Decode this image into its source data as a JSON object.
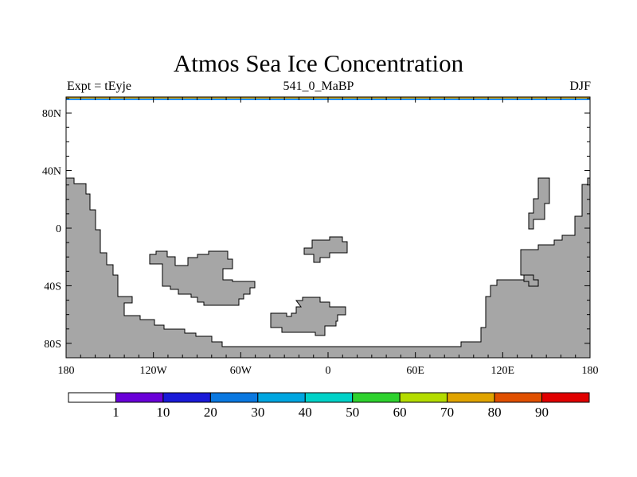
{
  "header": {
    "title": "Atmos Sea Ice Concentration",
    "left_label": "Expt = tEyje",
    "center_label": "541_0_MaBP",
    "right_label": "DJF"
  },
  "map": {
    "lon_range": [
      -180,
      180
    ],
    "lat_range": [
      -90,
      90
    ],
    "x_ticks": [
      {
        "value": -180,
        "label": "180"
      },
      {
        "value": -120,
        "label": "120W"
      },
      {
        "value": -60,
        "label": "60W"
      },
      {
        "value": 0,
        "label": "0"
      },
      {
        "value": 60,
        "label": "60E"
      },
      {
        "value": 120,
        "label": "120E"
      },
      {
        "value": 180,
        "label": "180"
      }
    ],
    "y_ticks": [
      {
        "value": 80,
        "label": "80N"
      },
      {
        "value": 40,
        "label": "40N"
      },
      {
        "value": 0,
        "label": "0"
      },
      {
        "value": -40,
        "label": "40S"
      },
      {
        "value": -80,
        "label": "80S"
      }
    ],
    "land_color": "#a6a6a6",
    "top_band_colors": [
      "#d9a400",
      "#1e90ff"
    ]
  },
  "colorbar": {
    "colors": [
      "#ffffff",
      "#6a00d8",
      "#1a1ad8",
      "#0a78e0",
      "#00a6e0",
      "#00d2c8",
      "#2ed22e",
      "#b4dc00",
      "#e0a400",
      "#e05000",
      "#e00000"
    ],
    "labels": [
      "1",
      "10",
      "20",
      "30",
      "40",
      "50",
      "60",
      "70",
      "80",
      "90"
    ]
  }
}
